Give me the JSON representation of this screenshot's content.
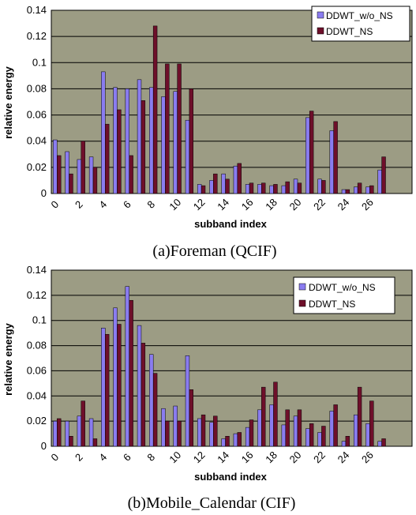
{
  "colors": {
    "plot_bg": "#9c9c84",
    "series_1": "#8a7cf0",
    "series_2": "#6e0f2a",
    "gridline": "#000000"
  },
  "chart_data": [
    {
      "type": "bar",
      "caption": "(a)Foreman (QCIF)",
      "xlabel": "subband index",
      "ylabel": "relative energy",
      "ylim": [
        0,
        0.14
      ],
      "yticks": [
        "0",
        "0.02",
        "0.04",
        "0.06",
        "0.08",
        "0.1",
        "0.12",
        "0.14"
      ],
      "categories": [
        "0",
        "1",
        "2",
        "3",
        "4",
        "5",
        "6",
        "7",
        "8",
        "9",
        "10",
        "11",
        "12",
        "13",
        "14",
        "15",
        "16",
        "17",
        "18",
        "19",
        "20",
        "21",
        "22",
        "23",
        "24",
        "25",
        "26",
        "27",
        "28",
        "29"
      ],
      "xtick_labels": [
        "0",
        "2",
        "4",
        "6",
        "8",
        "10",
        "12",
        "14",
        "16",
        "18",
        "20",
        "22",
        "24",
        "26"
      ],
      "grid": true,
      "legend_position": "top-right",
      "series": [
        {
          "name": "DDWT_w/o_NS",
          "values": [
            0.041,
            0.032,
            0.026,
            0.028,
            0.093,
            0.081,
            0.08,
            0.087,
            0.081,
            0.074,
            0.078,
            0.056,
            0.007,
            0.01,
            0.015,
            0.021,
            0.007,
            0.007,
            0.006,
            0.006,
            0.011,
            0.058,
            0.011,
            0.048,
            0.003,
            0.005,
            0.005,
            0.018,
            0,
            0
          ]
        },
        {
          "name": "DDWT_NS",
          "values": [
            0.029,
            0.015,
            0.04,
            0.02,
            0.053,
            0.064,
            0.029,
            0.071,
            0.128,
            0.099,
            0.099,
            0.08,
            0.006,
            0.015,
            0.011,
            0.023,
            0.008,
            0.008,
            0.007,
            0.009,
            0.008,
            0.063,
            0.01,
            0.055,
            0.003,
            0.008,
            0.006,
            0.028,
            0,
            0
          ]
        }
      ]
    },
    {
      "type": "bar",
      "caption": "(b)Mobile_Calendar (CIF)",
      "xlabel": "subband index",
      "ylabel": "relative energy",
      "ylim": [
        0,
        0.14
      ],
      "yticks": [
        "0",
        "0.02",
        "0.04",
        "0.06",
        "0.08",
        "0.1",
        "0.12",
        "0.14"
      ],
      "categories": [
        "0",
        "1",
        "2",
        "3",
        "4",
        "5",
        "6",
        "7",
        "8",
        "9",
        "10",
        "11",
        "12",
        "13",
        "14",
        "15",
        "16",
        "17",
        "18",
        "19",
        "20",
        "21",
        "22",
        "23",
        "24",
        "25",
        "26",
        "27",
        "28",
        "29"
      ],
      "xtick_labels": [
        "0",
        "2",
        "4",
        "6",
        "8",
        "10",
        "12",
        "14",
        "16",
        "18",
        "20",
        "22",
        "24",
        "26"
      ],
      "grid": true,
      "legend_position": "top-right",
      "series": [
        {
          "name": "DDWT_w/o_NS",
          "values": [
            0.02,
            0.02,
            0.024,
            0.022,
            0.094,
            0.11,
            0.127,
            0.096,
            0.073,
            0.03,
            0.032,
            0.072,
            0.022,
            0.019,
            0.006,
            0.01,
            0.015,
            0.029,
            0.033,
            0.017,
            0.024,
            0.014,
            0.011,
            0.028,
            0.004,
            0.025,
            0.018,
            0.004,
            0,
            0
          ]
        },
        {
          "name": "DDWT_NS",
          "values": [
            0.022,
            0.008,
            0.036,
            0.006,
            0.089,
            0.097,
            0.116,
            0.082,
            0.058,
            0.02,
            0.02,
            0.045,
            0.025,
            0.024,
            0.008,
            0.011,
            0.021,
            0.047,
            0.051,
            0.029,
            0.029,
            0.018,
            0.016,
            0.033,
            0.008,
            0.047,
            0.036,
            0.006,
            0,
            0
          ]
        }
      ]
    }
  ]
}
